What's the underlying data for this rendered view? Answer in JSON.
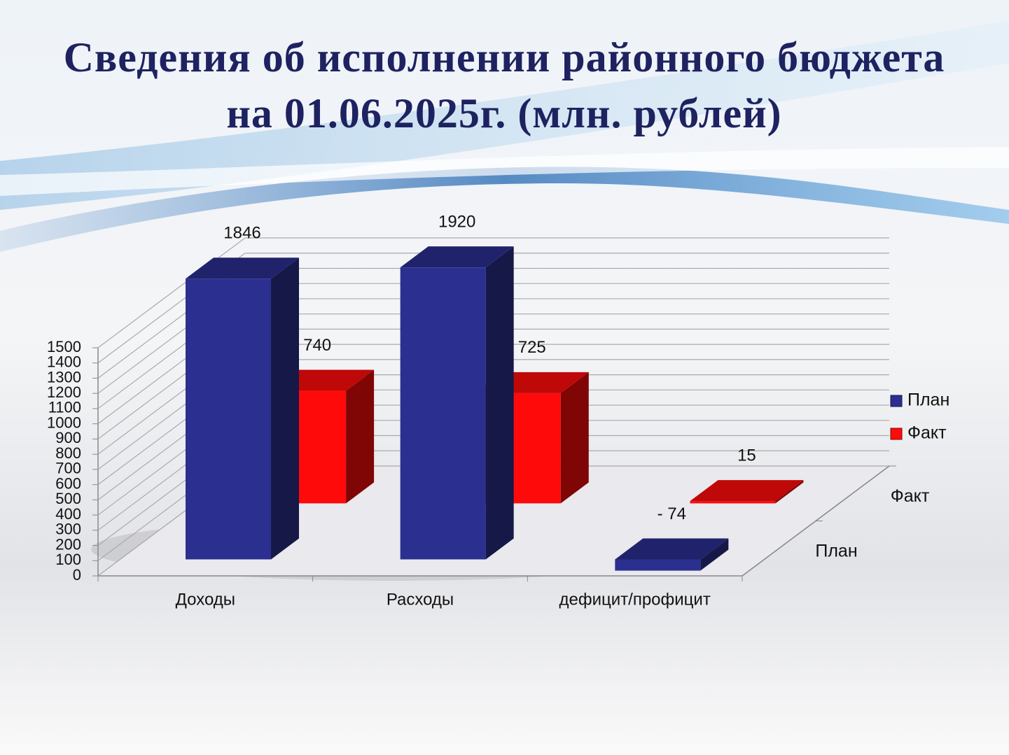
{
  "chart_data": {
    "type": "bar3d",
    "title": [
      "Сведения об исполнении районного бюджета",
      "на 01.06.2025г. (млн. рублей)"
    ],
    "categories": [
      "Доходы",
      "Расходы",
      "дефицит/профицит"
    ],
    "series": [
      {
        "name": "План",
        "color": "#2b2f8f",
        "values": [
          1846,
          1920,
          -74
        ],
        "value_labels": [
          "1846",
          "1920",
          "- 74"
        ]
      },
      {
        "name": "Факт",
        "color": "#ff0a0a",
        "values": [
          740,
          725,
          15
        ]
      }
    ],
    "ylim": [
      0,
      1500
    ],
    "yticks": [
      0,
      100,
      200,
      300,
      400,
      500,
      600,
      700,
      800,
      900,
      1000,
      1100,
      1200,
      1300,
      1400,
      1500
    ],
    "grid": true,
    "legend": "right"
  }
}
